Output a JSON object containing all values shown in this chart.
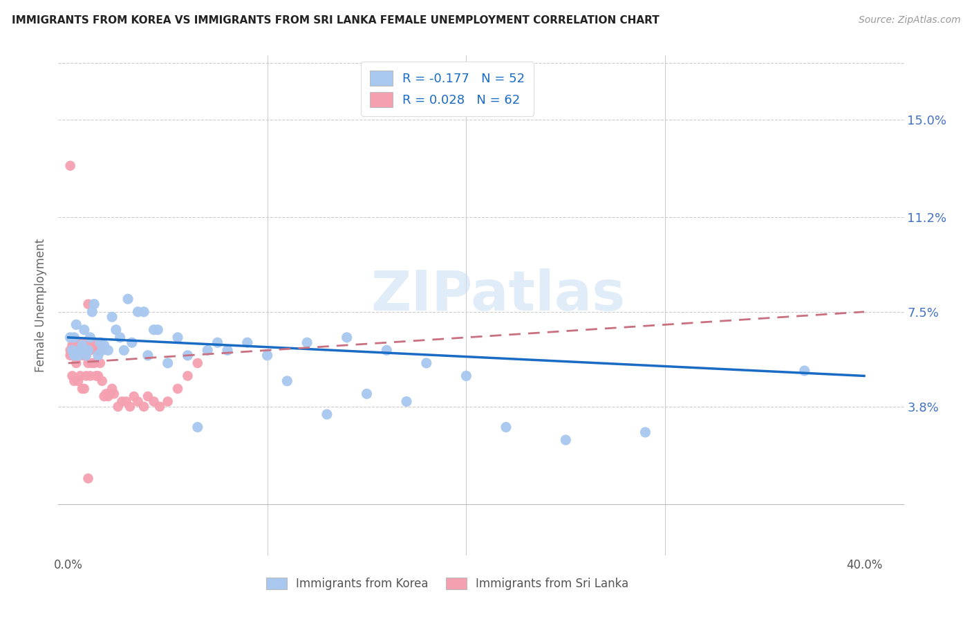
{
  "title": "IMMIGRANTS FROM KOREA VS IMMIGRANTS FROM SRI LANKA FEMALE UNEMPLOYMENT CORRELATION CHART",
  "source": "Source: ZipAtlas.com",
  "ylabel": "Female Unemployment",
  "ytick_labels": [
    "15.0%",
    "11.2%",
    "7.5%",
    "3.8%"
  ],
  "ytick_values": [
    0.15,
    0.112,
    0.075,
    0.038
  ],
  "xlim": [
    -0.005,
    0.42
  ],
  "ylim": [
    -0.02,
    0.175
  ],
  "korea_color": "#a8c8f0",
  "srilanka_color": "#f5a0b0",
  "korea_line_color": "#1a6bc4",
  "srilanka_line_color": "#c87080",
  "watermark": "ZIPatlas",
  "background_color": "#ffffff",
  "korea_R": "-0.177",
  "korea_N": "52",
  "srilanka_R": "0.028",
  "srilanka_N": "62",
  "legend_label_korea": "Immigrants from Korea",
  "legend_label_srilanka": "Immigrants from Sri Lanka",
  "korea_x": [
    0.001,
    0.002,
    0.003,
    0.003,
    0.004,
    0.005,
    0.006,
    0.007,
    0.008,
    0.009,
    0.01,
    0.011,
    0.012,
    0.013,
    0.015,
    0.016,
    0.017,
    0.018,
    0.02,
    0.022,
    0.024,
    0.026,
    0.028,
    0.03,
    0.032,
    0.035,
    0.038,
    0.04,
    0.043,
    0.045,
    0.05,
    0.055,
    0.06,
    0.065,
    0.07,
    0.075,
    0.08,
    0.09,
    0.1,
    0.11,
    0.12,
    0.13,
    0.14,
    0.15,
    0.16,
    0.17,
    0.18,
    0.2,
    0.22,
    0.25,
    0.29,
    0.37
  ],
  "korea_y": [
    0.065,
    0.06,
    0.058,
    0.065,
    0.07,
    0.058,
    0.06,
    0.062,
    0.068,
    0.058,
    0.06,
    0.065,
    0.075,
    0.078,
    0.058,
    0.063,
    0.06,
    0.062,
    0.06,
    0.073,
    0.068,
    0.065,
    0.06,
    0.08,
    0.063,
    0.075,
    0.075,
    0.058,
    0.068,
    0.068,
    0.055,
    0.065,
    0.058,
    0.03,
    0.06,
    0.063,
    0.06,
    0.063,
    0.058,
    0.048,
    0.063,
    0.035,
    0.065,
    0.043,
    0.06,
    0.04,
    0.055,
    0.05,
    0.03,
    0.025,
    0.028,
    0.052
  ],
  "srilanka_x": [
    0.001,
    0.001,
    0.001,
    0.002,
    0.002,
    0.002,
    0.003,
    0.003,
    0.003,
    0.004,
    0.004,
    0.005,
    0.005,
    0.005,
    0.006,
    0.006,
    0.006,
    0.007,
    0.007,
    0.007,
    0.008,
    0.008,
    0.008,
    0.009,
    0.009,
    0.01,
    0.01,
    0.01,
    0.011,
    0.011,
    0.012,
    0.012,
    0.013,
    0.013,
    0.014,
    0.014,
    0.015,
    0.015,
    0.016,
    0.016,
    0.017,
    0.018,
    0.019,
    0.02,
    0.021,
    0.022,
    0.023,
    0.025,
    0.027,
    0.029,
    0.031,
    0.033,
    0.035,
    0.038,
    0.04,
    0.043,
    0.046,
    0.05,
    0.055,
    0.06,
    0.065,
    0.01
  ],
  "srilanka_y": [
    0.132,
    0.06,
    0.058,
    0.062,
    0.058,
    0.05,
    0.062,
    0.06,
    0.048,
    0.062,
    0.055,
    0.06,
    0.062,
    0.048,
    0.062,
    0.06,
    0.05,
    0.063,
    0.058,
    0.045,
    0.062,
    0.058,
    0.045,
    0.06,
    0.05,
    0.078,
    0.062,
    0.055,
    0.06,
    0.05,
    0.063,
    0.055,
    0.062,
    0.055,
    0.06,
    0.05,
    0.06,
    0.05,
    0.063,
    0.055,
    0.048,
    0.042,
    0.043,
    0.042,
    0.043,
    0.045,
    0.043,
    0.038,
    0.04,
    0.04,
    0.038,
    0.042,
    0.04,
    0.038,
    0.042,
    0.04,
    0.038,
    0.04,
    0.045,
    0.05,
    0.055,
    0.01
  ]
}
